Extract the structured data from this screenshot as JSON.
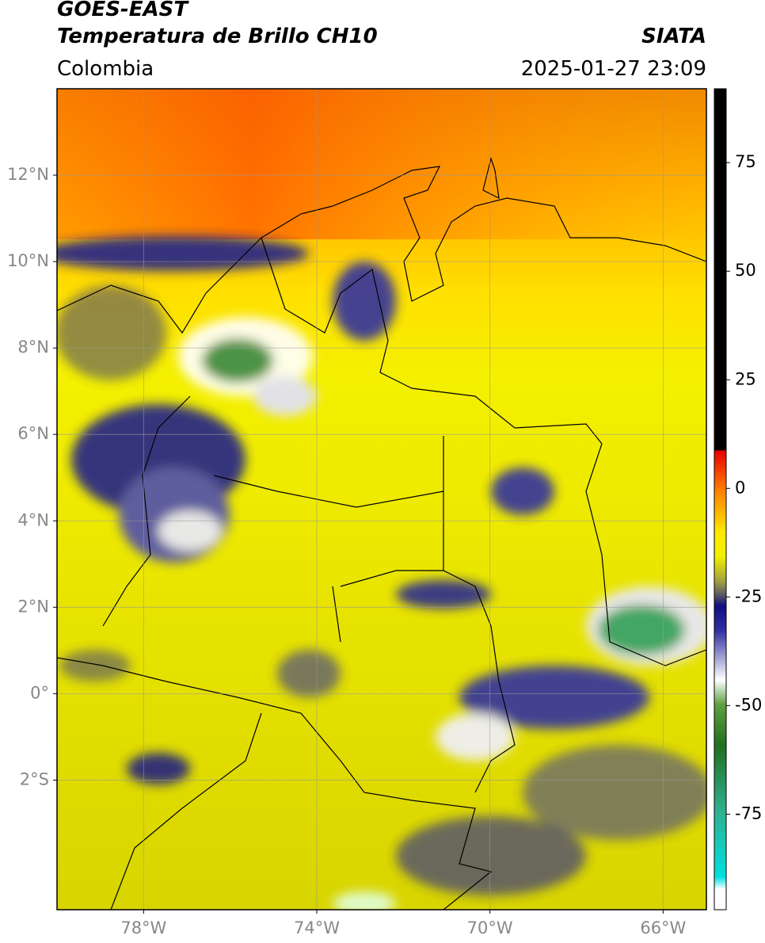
{
  "header": {
    "title": "GOES-EAST",
    "subtitle": "Temperatura de Brillo CH10",
    "region": "Colombia",
    "source": "SIATA",
    "timestamp": "2025-01-27 23:09"
  },
  "map": {
    "xlim": [
      -80,
      -65
    ],
    "ylim": [
      -5,
      14
    ],
    "lat_ticks": [
      {
        "value": 12,
        "label": "12°N"
      },
      {
        "value": 10,
        "label": "10°N"
      },
      {
        "value": 8,
        "label": "8°N"
      },
      {
        "value": 6,
        "label": "6°N"
      },
      {
        "value": 4,
        "label": "4°N"
      },
      {
        "value": 2,
        "label": "2°N"
      },
      {
        "value": 0,
        "label": "0°"
      },
      {
        "value": -2,
        "label": "2°S"
      }
    ],
    "lon_ticks": [
      {
        "value": -78,
        "label": "78°W"
      },
      {
        "value": -74,
        "label": "74°W"
      },
      {
        "value": -70,
        "label": "70°W"
      },
      {
        "value": -66,
        "label": "66°W"
      }
    ],
    "grid": true
  },
  "colorbar": {
    "lim": [
      -97,
      92
    ],
    "ticks": [
      75,
      50,
      25,
      0,
      -25,
      -50,
      -75
    ]
  }
}
